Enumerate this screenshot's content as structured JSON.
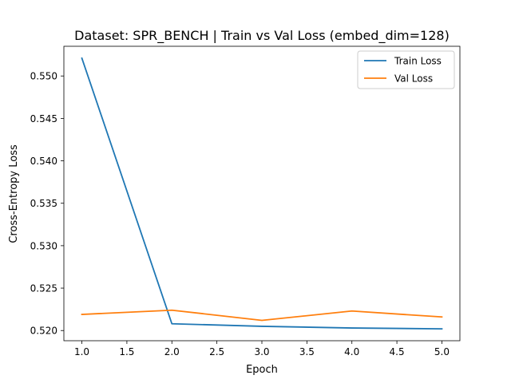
{
  "chart_data": {
    "type": "line",
    "title": "Dataset: SPR_BENCH | Train vs Val Loss (embed_dim=128)",
    "xlabel": "Epoch",
    "ylabel": "Cross-Entropy Loss",
    "xlim": [
      0.8,
      5.2
    ],
    "ylim": [
      0.5188,
      0.5535
    ],
    "x_ticks": [
      1.0,
      1.5,
      2.0,
      2.5,
      3.0,
      3.5,
      4.0,
      4.5,
      5.0
    ],
    "x_tick_labels": [
      "1.0",
      "1.5",
      "2.0",
      "2.5",
      "3.0",
      "3.5",
      "4.0",
      "4.5",
      "5.0"
    ],
    "y_ticks": [
      0.52,
      0.525,
      0.53,
      0.535,
      0.54,
      0.545,
      0.55
    ],
    "y_tick_labels": [
      "0.520",
      "0.525",
      "0.530",
      "0.535",
      "0.540",
      "0.545",
      "0.550"
    ],
    "grid": false,
    "legend_position": "top-right",
    "x": [
      1,
      2,
      3,
      4,
      5
    ],
    "series": [
      {
        "name": "Train Loss",
        "color": "#1f77b4",
        "values": [
          0.5521,
          0.5208,
          0.5205,
          0.5203,
          0.5202
        ]
      },
      {
        "name": "Val Loss",
        "color": "#ff7f0e",
        "values": [
          0.5219,
          0.5224,
          0.5212,
          0.5223,
          0.5216
        ]
      }
    ]
  }
}
